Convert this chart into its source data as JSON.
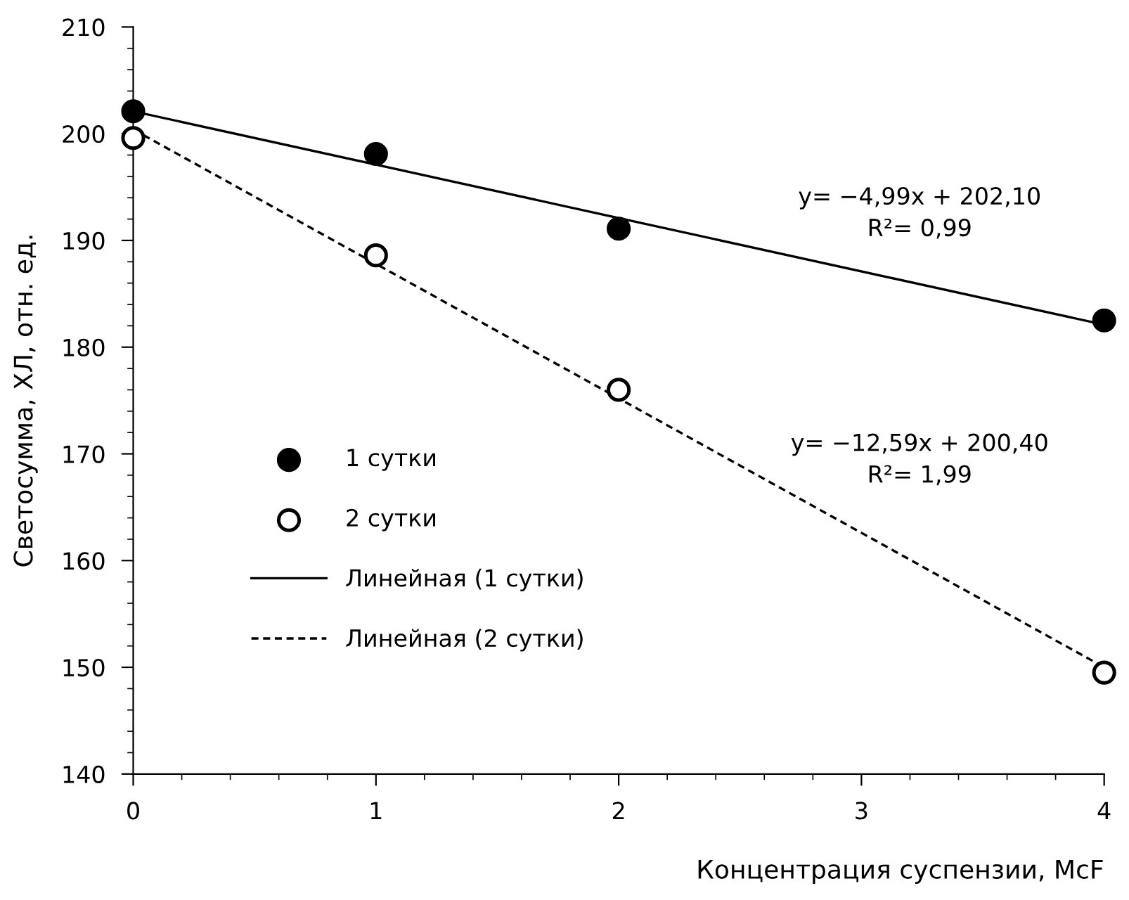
{
  "chart_data": {
    "type": "scatter",
    "xlabel": "Концентрация суспензии, McF",
    "ylabel": "Светосумма, ХЛ, отн. ед.",
    "x": [
      0,
      1,
      2,
      4
    ],
    "series": [
      {
        "name": "1 сутки",
        "color": "#000000",
        "marker": "circle",
        "values": [
          202.1,
          198.1,
          191.1,
          182.5
        ]
      },
      {
        "name": "2 сутки",
        "color": "#ffffff",
        "marker": "circle",
        "values": [
          199.6,
          188.6,
          176.0,
          149.5
        ]
      },
      {
        "name": "Линейная (1 сутки)",
        "type": "line",
        "color": "#000000",
        "line_style": "solid",
        "marker": "none",
        "values": [
          202.1,
          197.1,
          192.1,
          182.1
        ]
      },
      {
        "name": "Линейная (2 сутки)",
        "type": "line",
        "color": "#000000",
        "line_style": "dashed",
        "marker": "none",
        "values": [
          200.4,
          187.8,
          175.2,
          150.0
        ]
      }
    ],
    "annotations": [
      "y= −4,99x + 202,10\nR²= 0,99",
      "y= −12,59x + 200,40\nR²= 1,99"
    ],
    "xlim": [
      0,
      4
    ],
    "xticks": [
      0,
      1,
      2,
      3,
      4
    ],
    "ylim": [
      140,
      210
    ],
    "yticks": [
      140,
      150,
      160,
      170,
      180,
      190,
      200,
      210
    ],
    "grid": false,
    "legend": "left"
  }
}
